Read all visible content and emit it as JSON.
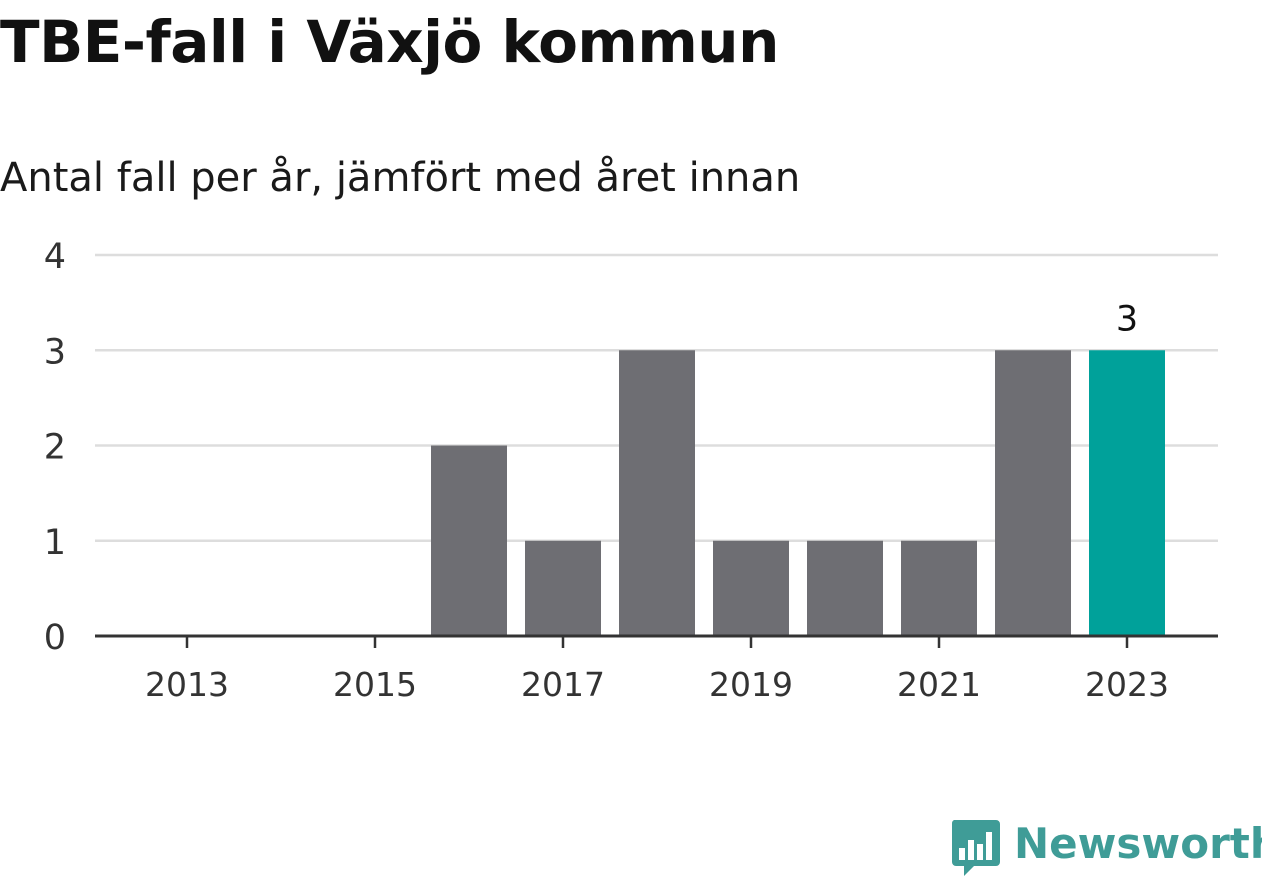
{
  "header": {
    "title": "TBE-fall i Växjö kommun",
    "subtitle": "Antal fall per år, jämfört med året innan"
  },
  "branding": {
    "logo_text": "Newsworthy",
    "logo_icon": "bar-chart-speech-bubble-icon",
    "logo_color": "#3f9c97"
  },
  "colors": {
    "bar_default": "#6e6e73",
    "bar_highlight": "#00a19a",
    "grid": "#dddddd",
    "axis": "#333333"
  },
  "chart_data": {
    "type": "bar",
    "categories": [
      "2013",
      "2014",
      "2015",
      "2016",
      "2017",
      "2018",
      "2019",
      "2020",
      "2021",
      "2022",
      "2023"
    ],
    "values": [
      0,
      0,
      0,
      2,
      1,
      3,
      1,
      1,
      1,
      3,
      3
    ],
    "highlight_index": 10,
    "data_labels": [
      {
        "index": 10,
        "text": "3"
      }
    ],
    "x_tick_labels": [
      "2013",
      "2015",
      "2017",
      "2019",
      "2021",
      "2023"
    ],
    "y_ticks": [
      "0",
      "1",
      "2",
      "3",
      "4"
    ],
    "ylim": [
      0,
      4
    ],
    "grid": true
  }
}
